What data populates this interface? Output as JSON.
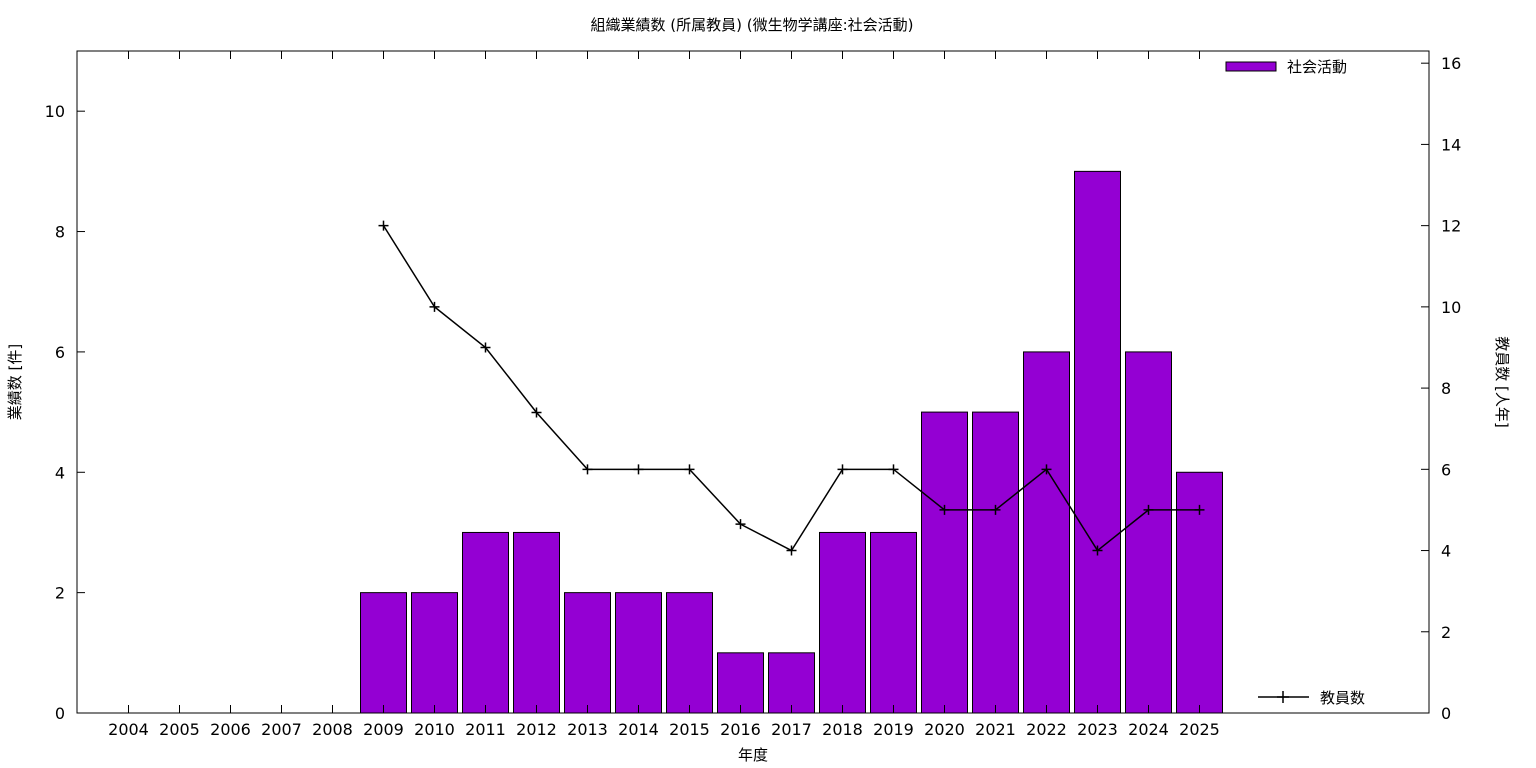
{
  "chart_data": {
    "type": "bar",
    "title": "組織業績数 (所属教員) (微生物学講座:社会活動)",
    "xlabel": "年度",
    "ylabel": "業績数 [件]",
    "y2label": "教員数 [人年]",
    "categories": [
      "2004",
      "2005",
      "2006",
      "2007",
      "2008",
      "2009",
      "2010",
      "2011",
      "2012",
      "2013",
      "2014",
      "2015",
      "2016",
      "2017",
      "2018",
      "2019",
      "2020",
      "2021",
      "2022",
      "2023",
      "2024",
      "2025"
    ],
    "series": [
      {
        "name": "社会活動",
        "type": "bar",
        "axis": "left",
        "color": "#9400d3",
        "values": [
          null,
          null,
          null,
          null,
          null,
          2,
          2,
          3,
          3,
          2,
          2,
          2,
          1,
          1,
          3,
          3,
          5,
          5,
          6,
          9,
          6,
          4
        ]
      },
      {
        "name": "教員数",
        "type": "line",
        "axis": "right",
        "color": "#000000",
        "marker": "plus",
        "values": [
          null,
          null,
          null,
          null,
          null,
          12,
          10,
          9,
          7.4,
          6,
          6,
          6,
          4.65,
          4,
          6,
          6,
          5,
          5,
          6,
          4,
          5,
          5
        ]
      }
    ],
    "ylim": [
      0,
      11
    ],
    "y2lim": [
      0,
      16.3
    ],
    "yticks": [
      0,
      2,
      4,
      6,
      8,
      10
    ],
    "y2ticks": [
      0,
      2,
      4,
      6,
      8,
      10,
      12,
      14,
      16
    ],
    "legend": [
      {
        "label": "社会活動",
        "placement": "top-right"
      },
      {
        "label": "教員数",
        "placement": "bottom-right"
      }
    ],
    "grid": false
  }
}
